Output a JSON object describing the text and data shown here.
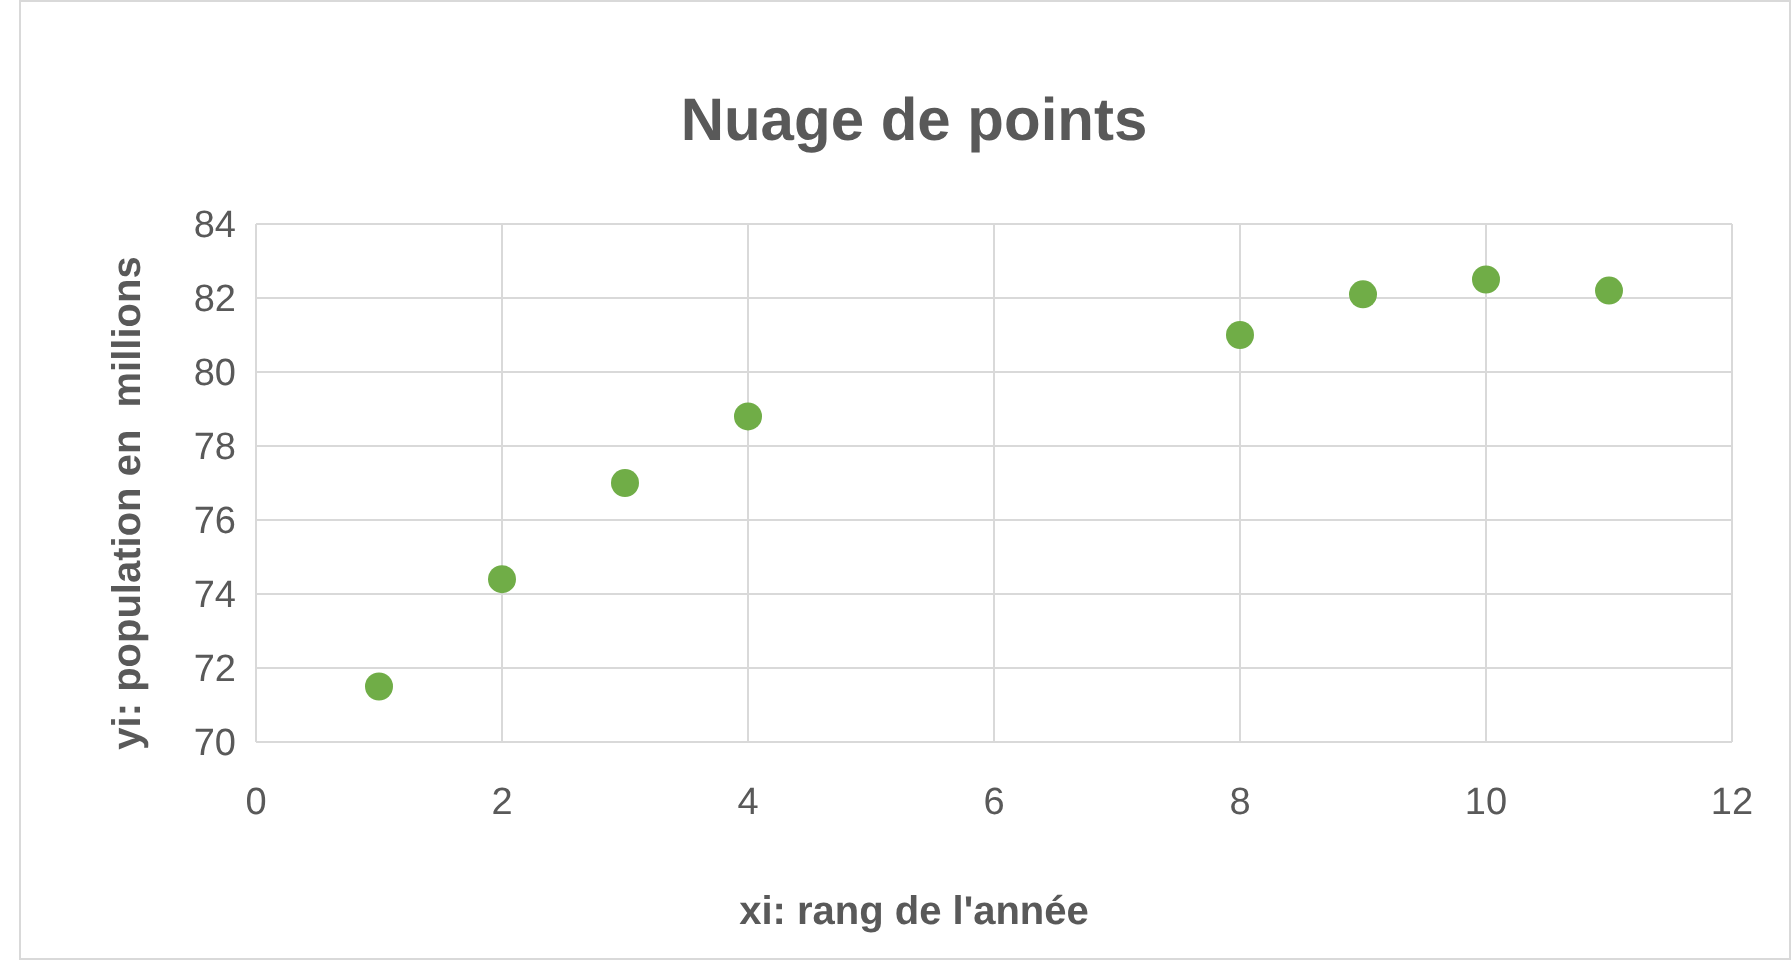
{
  "chart_data": {
    "type": "scatter",
    "title": "Nuage de points",
    "xlabel": "xi: rang de l'année",
    "ylabel": "yi: population en  millions",
    "x": [
      1,
      2,
      3,
      4,
      8,
      9,
      10,
      11
    ],
    "series": [
      {
        "color": "#70ad47",
        "values": [
          71.5,
          74.4,
          77.0,
          78.8,
          81.0,
          82.1,
          82.5,
          82.2
        ]
      }
    ],
    "xlim": [
      0,
      12
    ],
    "xticks": [
      0,
      2,
      4,
      6,
      8,
      10,
      12
    ],
    "ylim": [
      70,
      84
    ],
    "yticks": [
      70,
      72,
      74,
      76,
      78,
      80,
      82,
      84
    ],
    "grid": true,
    "marker": "circle"
  }
}
